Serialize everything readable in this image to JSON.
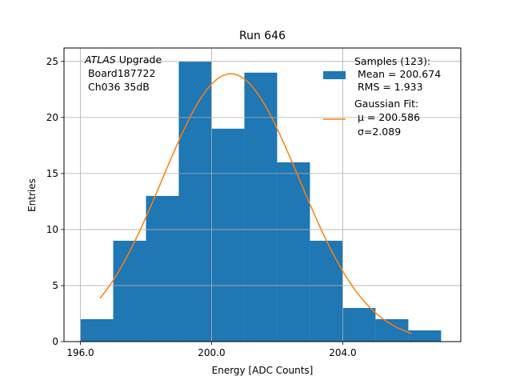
{
  "chart_data": {
    "type": "bar",
    "title": "Run 646",
    "xlabel": "Energy [ADC Counts]",
    "ylabel": "Entries",
    "xlim": [
      195.5,
      207.6
    ],
    "ylim": [
      0,
      26.2
    ],
    "x_ticks": [
      196.0,
      200.0,
      204.0
    ],
    "x_tick_labels": [
      "196.0",
      "200.0",
      "204.0"
    ],
    "y_ticks": [
      0,
      5,
      10,
      15,
      20,
      25
    ],
    "y_tick_labels": [
      "0",
      "5",
      "10",
      "15",
      "20",
      "25"
    ],
    "grid": true,
    "histogram": {
      "bin_edges": [
        196.0,
        197.0,
        198.0,
        199.0,
        200.0,
        201.0,
        202.0,
        203.0,
        204.0,
        205.0,
        206.0,
        207.0
      ],
      "counts": [
        2,
        9,
        13,
        25,
        19,
        24,
        16,
        9,
        3,
        2,
        1
      ],
      "color": "#1f77b4"
    },
    "fit": {
      "name": "Gaussian",
      "mu": 200.586,
      "sigma": 2.089,
      "amplitude": 23.9,
      "x_range": [
        196.6,
        206.1
      ],
      "color": "#ff7f0e"
    },
    "legend": {
      "placement": "top-right",
      "entries": [
        {
          "lines": [
            "Samples (123):",
            " Mean = 200.674",
            " RMS = 1.933"
          ],
          "kind": "patch",
          "color": "#1f77b4"
        },
        {
          "lines": [
            "Gaussian Fit:",
            " μ = 200.586",
            " σ=2.089"
          ],
          "kind": "line",
          "color": "#ff7f0e"
        }
      ]
    },
    "annotation": {
      "italic": "ATLAS",
      "rest": " Upgrade",
      "lines": [
        " Board187722",
        " Ch036 35dB"
      ],
      "placement": "top-left"
    }
  }
}
